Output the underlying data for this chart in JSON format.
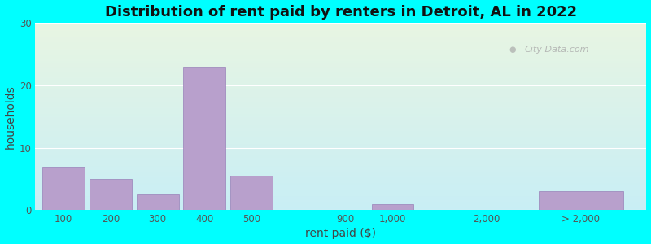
{
  "title": "Distribution of rent paid by renters in Detroit, AL in 2022",
  "xlabel": "rent paid ($)",
  "ylabel": "households",
  "background_color": "#00FFFF",
  "plot_bg_color_top": "#e8f5e2",
  "plot_bg_color_bottom": "#c8eef5",
  "bar_color": "#b8a0cc",
  "bar_edgecolor": "#9880b8",
  "ylim": [
    0,
    30
  ],
  "yticks": [
    0,
    10,
    20,
    30
  ],
  "title_fontsize": 13,
  "axis_fontsize": 10,
  "tick_fontsize": 8.5,
  "watermark_text": "City-Data.com",
  "bar_positions": [
    0,
    1,
    2,
    3,
    4,
    6,
    7,
    9,
    11
  ],
  "bar_widths": [
    0.9,
    0.9,
    0.9,
    0.9,
    0.9,
    0.9,
    0.9,
    0.9,
    1.8
  ],
  "values": [
    7,
    5,
    2.5,
    23,
    5.5,
    0,
    1,
    0,
    3
  ],
  "xtick_positions": [
    0,
    1,
    2,
    3,
    4,
    6,
    7,
    9,
    11
  ],
  "xtick_labels": [
    "100",
    "200",
    "300",
    "400",
    "500",
    "900",
    "1,000",
    "2,000",
    "> 2,000"
  ]
}
